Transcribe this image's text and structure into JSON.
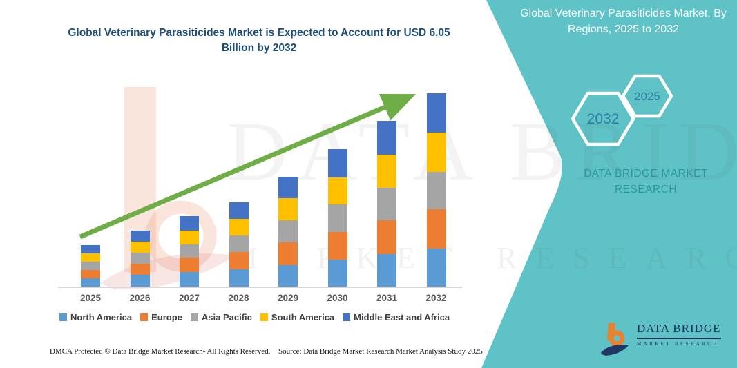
{
  "main_title": "Global Veterinary Parasiticides Market is Expected to Account for USD 6.05 Billion by 2032",
  "panel": {
    "title": "Global Veterinary Parasiticides Market, By Regions, 2025 to 2032",
    "background_color": "#5EC2C6",
    "hexagons": [
      {
        "label": "2032"
      },
      {
        "label": "2025"
      }
    ],
    "brand_text": "DATA BRIDGE MARKET RESEARCH"
  },
  "logo": {
    "name": "DATA BRIDGE",
    "sub": "MARKET RESEARCH"
  },
  "watermark": {
    "line1": "DATA BRIDGE",
    "line2": "MARKET RESEARCH"
  },
  "footer": {
    "left": "DMCA Protected © Data Bridge Market Research-  All Rights Reserved.",
    "right": "Source: Data Bridge Market Research  Market Analysis Study 2025"
  },
  "chart_data": {
    "type": "bar",
    "stacked": true,
    "unit": "USD Billion",
    "categories": [
      "2025",
      "2026",
      "2027",
      "2028",
      "2029",
      "2030",
      "2031",
      "2032"
    ],
    "series": [
      {
        "name": "North America",
        "color": "#5B9BD5",
        "values": [
          0.26,
          0.36,
          0.45,
          0.54,
          0.68,
          0.84,
          1.02,
          1.18
        ]
      },
      {
        "name": "Europe",
        "color": "#ED7D31",
        "values": [
          0.27,
          0.36,
          0.45,
          0.54,
          0.7,
          0.88,
          1.06,
          1.24
        ]
      },
      {
        "name": "Asia Pacific",
        "color": "#A5A5A5",
        "values": [
          0.24,
          0.33,
          0.42,
          0.52,
          0.7,
          0.85,
          1.02,
          1.18
        ]
      },
      {
        "name": "South America",
        "color": "#FFC000",
        "values": [
          0.26,
          0.35,
          0.44,
          0.53,
          0.68,
          0.85,
          1.04,
          1.22
        ]
      },
      {
        "name": "Middle East and Africa",
        "color": "#4472C4",
        "values": [
          0.27,
          0.35,
          0.44,
          0.52,
          0.69,
          0.88,
          1.06,
          1.23
        ]
      }
    ],
    "totals": [
      1.3,
      1.75,
      2.2,
      2.65,
      3.45,
      4.3,
      5.2,
      6.05
    ],
    "highlight_value_2032": "USD 6.05 Billion",
    "ylim": [
      0,
      6.5
    ],
    "grid": false,
    "axis_labels_shown": "x-only",
    "legend_position": "bottom",
    "trend_arrow": true,
    "trend_arrow_color": "#6FAD47"
  }
}
